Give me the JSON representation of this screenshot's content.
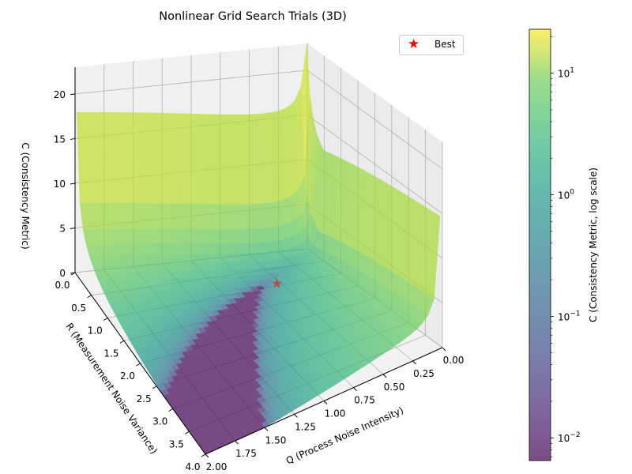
{
  "chart_data": {
    "type": "surface3d",
    "title": "Nonlinear Grid Search Trials (3D)",
    "xlabel": "Q (Process Noise Intensity)",
    "ylabel": "R (Measurement Noise Variance)",
    "zlabel": "C (Consistency Metric)",
    "x_ticks": [
      "0.00",
      "0.25",
      "0.50",
      "0.75",
      "1.00",
      "1.25",
      "1.50",
      "1.75",
      "2.00"
    ],
    "y_ticks": [
      "0.0",
      "0.5",
      "1.0",
      "1.5",
      "2.0",
      "2.5",
      "3.0",
      "3.5",
      "4.0"
    ],
    "z_ticks": [
      "0",
      "5",
      "10",
      "15",
      "20"
    ],
    "xlim": [
      0,
      2
    ],
    "ylim": [
      0,
      4
    ],
    "zlim": [
      0,
      23
    ],
    "colormap": "viridis",
    "color_scale": "log",
    "surface_alpha": 0.7,
    "best_point": {
      "label": "Best",
      "marker": "star",
      "color": "#ff0000",
      "q": 0.55,
      "r": 1.0,
      "c": 0.007
    },
    "surface_description": "C rises sharply toward Q→0 and R→0 corner (~23), low-valued purple valley along the curve where C≈0, green-yellow elsewhere",
    "colorbar": {
      "label": "C (Consistency Metric, log scale)",
      "ticks": [
        "10^-2",
        "10^-1",
        "10^0",
        "10^1"
      ],
      "range": [
        0.0065,
        23
      ]
    },
    "legend": {
      "entries": [
        {
          "label": "Best",
          "marker": "star",
          "color": "#ff0000"
        }
      ],
      "position": "upper right"
    }
  },
  "ui": {
    "title": "Nonlinear Grid Search Trials (3D)",
    "legend_label": "Best",
    "colorbar_label": "C (Consistency Metric, log scale)"
  }
}
